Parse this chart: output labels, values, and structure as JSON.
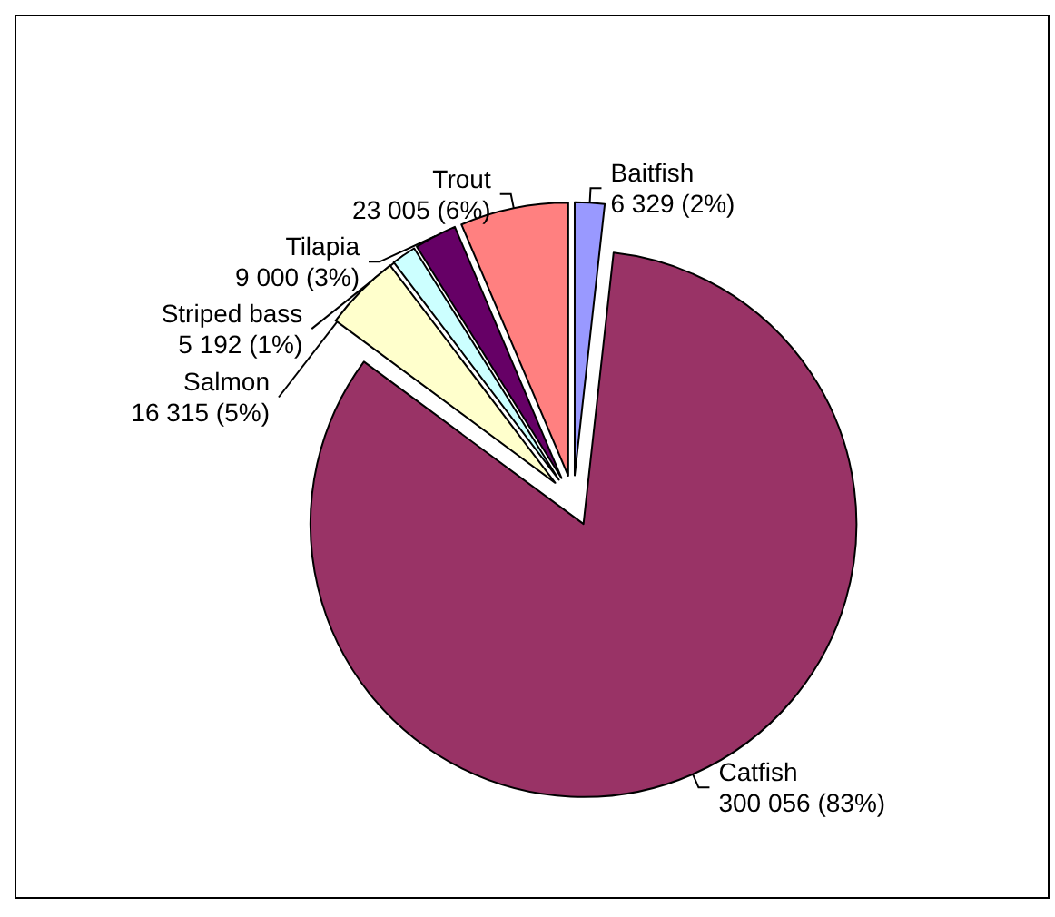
{
  "chart_data": {
    "type": "pie",
    "categories": [
      "Baitfish",
      "Catfish",
      "Salmon",
      "Striped bass",
      "Tilapia",
      "Trout"
    ],
    "values": [
      6329,
      300056,
      16315,
      5192,
      9000,
      23005
    ],
    "value_labels": [
      "6 329 (2%)",
      "300 056 (83%)",
      "16 315 (5%)",
      "5 192 (1%)",
      "9 000 (3%)",
      "23 005 (6%)"
    ],
    "colors": [
      "#9999ff",
      "#993366",
      "#ffffcc",
      "#ccffff",
      "#660066",
      "#ff8080"
    ]
  }
}
